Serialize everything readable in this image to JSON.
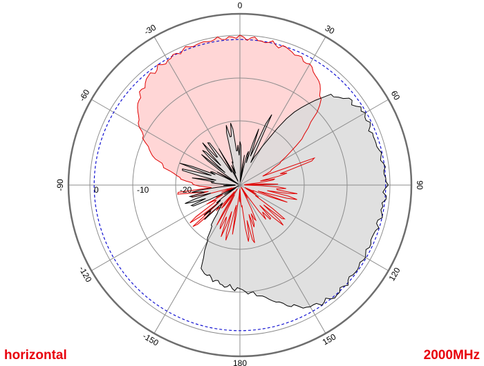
{
  "chart_data": {
    "type": "polar",
    "polarization_label": "horizontal",
    "frequency_label": "2000MHz",
    "r_unit": "dB",
    "r_range": [
      -35,
      5
    ],
    "ring_values": [
      -20,
      -10,
      0
    ],
    "ring_tick_labels": [
      "-20",
      "-10",
      "0"
    ],
    "reference_ring": -1,
    "angle_ticks": [
      0,
      30,
      60,
      90,
      120,
      150,
      180,
      -150,
      -120,
      -90,
      -60,
      -30
    ],
    "angle_tick_labels": [
      "0",
      "30",
      "60",
      "90",
      "120",
      "150",
      "180",
      "-150",
      "-120",
      "-90",
      "-60",
      "-30"
    ],
    "series": [
      {
        "fill": "#ffd6d6",
        "stroke": "#e00000",
        "points": [
          [
            0,
            -0.5
          ],
          [
            10,
            -0.8
          ],
          [
            20,
            -1.5
          ],
          [
            30,
            -2.5
          ],
          [
            40,
            -5.5
          ],
          [
            45,
            -9
          ],
          [
            50,
            -14
          ],
          [
            55,
            -19
          ],
          [
            60,
            -24
          ],
          [
            70,
            -30
          ],
          [
            80,
            -34
          ],
          [
            90,
            -35
          ],
          [
            100,
            -34
          ],
          [
            110,
            -35
          ],
          [
            120,
            -34
          ],
          [
            130,
            -35
          ],
          [
            140,
            -34
          ],
          [
            150,
            -35
          ],
          [
            160,
            -34
          ],
          [
            170,
            -35
          ],
          [
            180,
            -35
          ],
          [
            190,
            -34
          ],
          [
            200,
            -35
          ],
          [
            210,
            -34
          ],
          [
            220,
            -35
          ],
          [
            230,
            -34
          ],
          [
            240,
            -35
          ],
          [
            250,
            -34
          ],
          [
            260,
            -35
          ],
          [
            265,
            -28
          ],
          [
            270,
            -25
          ],
          [
            280,
            -19
          ],
          [
            290,
            -13
          ],
          [
            300,
            -8
          ],
          [
            310,
            -4
          ],
          [
            320,
            -2
          ],
          [
            330,
            -1.2
          ],
          [
            340,
            -0.7
          ],
          [
            350,
            -0.5
          ],
          [
            360,
            -0.5
          ]
        ]
      },
      {
        "fill": "#dadada",
        "stroke": "#000000",
        "points": [
          [
            0,
            -35
          ],
          [
            10,
            -34
          ],
          [
            20,
            -35
          ],
          [
            30,
            -25
          ],
          [
            35,
            -16
          ],
          [
            40,
            -10
          ],
          [
            45,
            -5.5
          ],
          [
            50,
            -3
          ],
          [
            60,
            -1.5
          ],
          [
            70,
            -2
          ],
          [
            80,
            -1.2
          ],
          [
            90,
            -1
          ],
          [
            100,
            -1.2
          ],
          [
            110,
            -1.8
          ],
          [
            120,
            -1.5
          ],
          [
            130,
            -1.2
          ],
          [
            140,
            -1
          ],
          [
            150,
            -2
          ],
          [
            160,
            -5.5
          ],
          [
            170,
            -9
          ],
          [
            180,
            -10.5
          ],
          [
            190,
            -11.5
          ],
          [
            200,
            -12.5
          ],
          [
            205,
            -13.5
          ],
          [
            210,
            -20
          ],
          [
            220,
            -27
          ],
          [
            230,
            -33
          ],
          [
            240,
            -35
          ],
          [
            250,
            -34
          ],
          [
            260,
            -35
          ],
          [
            270,
            -34
          ],
          [
            280,
            -35
          ],
          [
            290,
            -34
          ],
          [
            300,
            -35
          ],
          [
            310,
            -34
          ],
          [
            320,
            -35
          ],
          [
            330,
            -34
          ],
          [
            340,
            -35
          ],
          [
            350,
            -34
          ],
          [
            360,
            -35
          ]
        ]
      }
    ]
  }
}
